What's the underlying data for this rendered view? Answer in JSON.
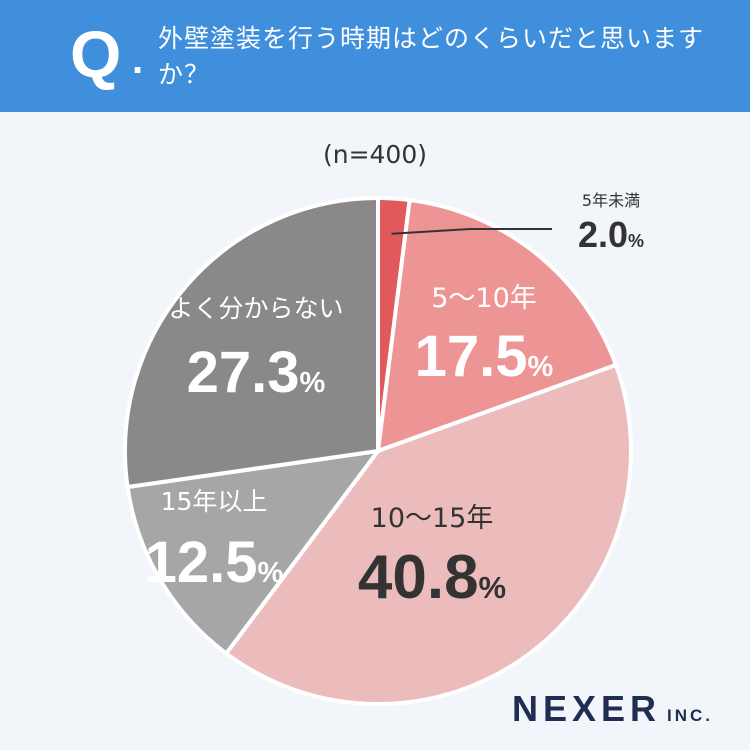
{
  "header": {
    "q_label": "Q",
    "q_dot": ".",
    "question": "外壁塗装を行う時期はどのくらいだと思いますか？"
  },
  "sample_size": "(n=400)",
  "logo": {
    "main": "NEXER",
    "sub": "INC."
  },
  "colors": {
    "header": "#3f8fdc",
    "background": "#f2f5f9",
    "slice_under5": "#e05a5c",
    "slice_5to10": "#ed9494",
    "slice_10to15": "#ecbcbd",
    "slice_15plus": "#a6a6a6",
    "slice_unknown": "#8a8889"
  },
  "chart_data": {
    "type": "pie",
    "categories": [
      "5年未満",
      "5～10年",
      "10～15年",
      "15年以上",
      "よく分からない"
    ],
    "values": [
      2.0,
      17.5,
      40.8,
      12.5,
      27.3
    ],
    "value_labels": [
      "2.0%",
      "17.5%",
      "40.8%",
      "12.5%",
      "27.3%"
    ],
    "unit": "%",
    "start": "12 o'clock",
    "direction": "clockwise"
  }
}
